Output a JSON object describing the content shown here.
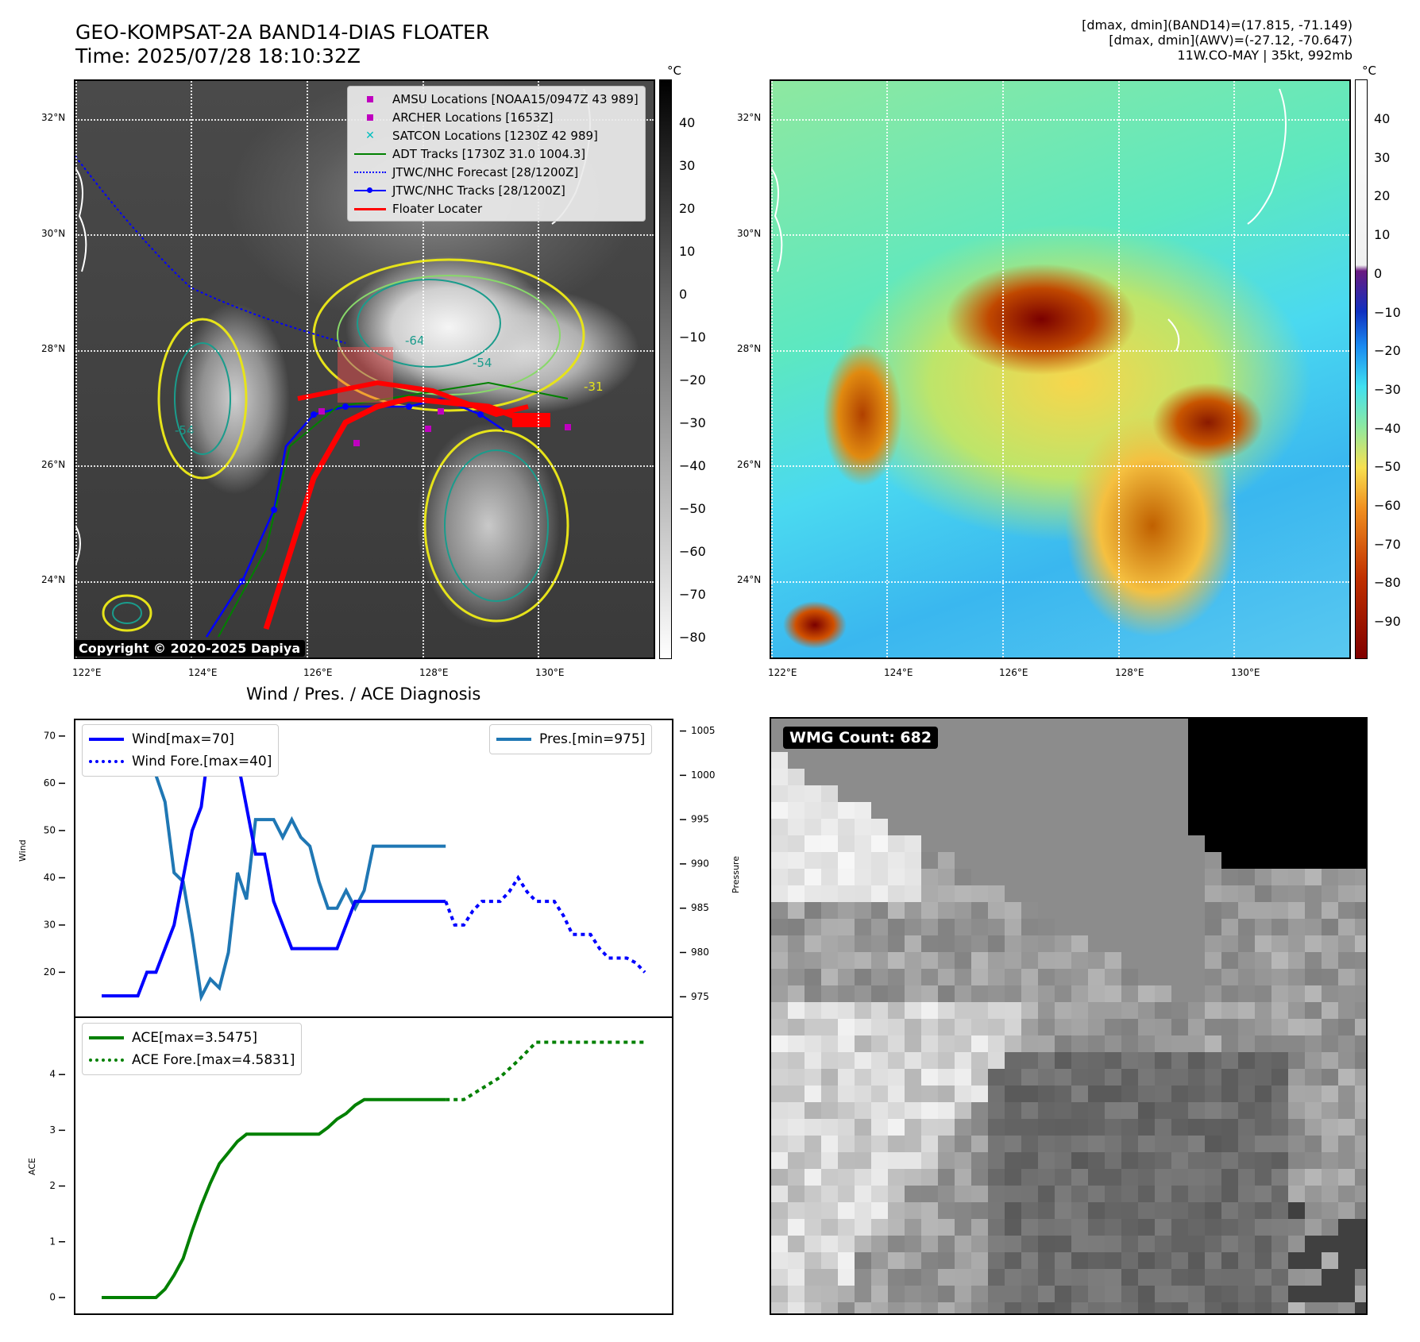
{
  "header": {
    "title_line1": "GEO-KOMPSAT-2A BAND14-DIAS FLOATER",
    "title_line2": "Time: 2025/07/28 18:10:32Z",
    "right_line1": "[dmax, dmin](BAND14)=(17.815, -71.149)",
    "right_line2": "[dmax, dmin](AWV)=(-27.12, -70.647)",
    "right_line3": "11W.CO-MAY | 35kt, 992mb"
  },
  "map": {
    "lat_labels": [
      "32°N",
      "30°N",
      "28°N",
      "26°N",
      "24°N"
    ],
    "lon_labels": [
      "122°E",
      "124°E",
      "126°E",
      "128°E",
      "130°E"
    ],
    "copyright": "Copyright © 2020-2025 Dapiya",
    "legend": [
      {
        "label": "AMSU Locations [NOAA15/0947Z 43 989]",
        "color": "#bf00bf",
        "kind": "square"
      },
      {
        "label": "ARCHER Locations [1653Z]",
        "color": "#bf00bf",
        "kind": "square"
      },
      {
        "label": "SATCON Locations [1230Z 42 989]",
        "color": "#00bfbf",
        "kind": "x"
      },
      {
        "label": "ADT Tracks [1730Z 31.0 1004.3]",
        "color": "#008000",
        "kind": "line"
      },
      {
        "label": "JTWC/NHC Forecast [28/1200Z]",
        "color": "#0000ff",
        "kind": "dotted"
      },
      {
        "label": "JTWC/NHC Tracks [28/1200Z]",
        "color": "#0000ff",
        "kind": "linedot"
      },
      {
        "label": "Floater Locater",
        "color": "#ff0000",
        "kind": "line"
      }
    ],
    "contour_labels": [
      "-64",
      "-54",
      "-31",
      "-54"
    ]
  },
  "colorbar_gray": {
    "unit": "°C",
    "ticks": [
      "40",
      "30",
      "20",
      "10",
      "0",
      "−10",
      "−20",
      "−30",
      "−40",
      "−50",
      "−60",
      "−70",
      "−80"
    ]
  },
  "colorbar_color": {
    "unit": "°C",
    "ticks": [
      "40",
      "30",
      "20",
      "10",
      "0",
      "−10",
      "−20",
      "−30",
      "−40",
      "−50",
      "−60",
      "−70",
      "−80",
      "−90"
    ]
  },
  "wmg": {
    "badge": "WMG Count: 682"
  },
  "chart_data": [
    {
      "type": "line",
      "title": "Wind / Pres. / ACE Diagnosis",
      "ylabel": "Wind",
      "ylabel_right": "Pressure",
      "ylim": [
        12,
        72
      ],
      "ylim_right": [
        973.5,
        1005.5
      ],
      "yticks": [
        "70",
        "60",
        "50",
        "40",
        "30",
        "20"
      ],
      "yticks_right": [
        "1005",
        "1000",
        "995",
        "990",
        "985",
        "980",
        "975"
      ],
      "series": [
        {
          "name": "Wind[max=70]",
          "color": "#0000ff",
          "style": "solid",
          "x": [
            0,
            2,
            4,
            5,
            6,
            7,
            8,
            9,
            10,
            11,
            12,
            13,
            14,
            15,
            16,
            17,
            18,
            19,
            20,
            21,
            22,
            23,
            24,
            25,
            26,
            27,
            28,
            29,
            30,
            31,
            32,
            33,
            34,
            35,
            36,
            37,
            38
          ],
          "values": [
            15,
            15,
            15,
            20,
            20,
            25,
            30,
            40,
            50,
            55,
            70,
            65,
            65,
            65,
            55,
            45,
            45,
            35,
            30,
            25,
            25,
            25,
            25,
            25,
            25,
            30,
            35,
            35,
            35,
            35,
            35,
            35,
            35,
            35,
            35,
            35,
            35
          ]
        },
        {
          "name": "Wind Fore.[max=40]",
          "color": "#0000ff",
          "style": "dotted",
          "x": [
            38,
            39,
            40,
            41,
            42,
            43,
            44,
            45,
            46,
            47,
            48,
            49,
            50,
            51,
            52,
            53,
            54,
            55,
            56,
            57,
            58,
            59,
            60
          ],
          "values": [
            35,
            30,
            30,
            33,
            35,
            35,
            35,
            37,
            40,
            37,
            35,
            35,
            35,
            32,
            28,
            28,
            28,
            25,
            23,
            23,
            23,
            22,
            20
          ]
        },
        {
          "name": "Pres.[min=975]",
          "color": "#1f77b4",
          "style": "solid",
          "x": [
            0,
            2,
            4,
            5,
            6,
            7,
            8,
            9,
            10,
            11,
            12,
            13,
            14,
            15,
            16,
            17,
            18,
            19,
            20,
            21,
            22,
            23,
            24,
            25,
            26,
            27,
            28,
            29,
            30,
            31,
            32,
            33,
            34,
            35,
            36,
            37,
            38
          ],
          "values": [
            1005,
            1005,
            1005,
            1002,
            1000,
            997,
            989,
            988,
            982,
            975,
            977,
            976,
            980,
            989,
            986,
            995,
            995,
            995,
            993,
            995,
            993,
            992,
            988,
            985,
            985,
            987,
            985,
            987,
            992,
            992,
            992,
            992,
            992,
            992,
            992,
            992,
            992
          ]
        },
        {
          "name": "ACE[max=3.5475]",
          "color": "#008000",
          "style": "solid",
          "x": [
            0,
            2,
            4,
            6,
            7,
            8,
            9,
            10,
            11,
            12,
            13,
            14,
            15,
            16,
            17,
            18,
            19,
            20,
            21,
            22,
            23,
            24,
            25,
            26,
            27,
            28,
            29,
            30,
            31,
            32,
            33,
            34,
            35,
            36,
            37,
            38
          ],
          "values": [
            0,
            0,
            0,
            0,
            0.15,
            0.4,
            0.7,
            1.2,
            1.65,
            2.05,
            2.4,
            2.6,
            2.8,
            2.93,
            2.93,
            2.93,
            2.93,
            2.93,
            2.93,
            2.93,
            2.93,
            2.93,
            3.05,
            3.2,
            3.3,
            3.45,
            3.55,
            3.55,
            3.55,
            3.55,
            3.55,
            3.55,
            3.55,
            3.55,
            3.55,
            3.55
          ]
        },
        {
          "name": "ACE Fore.[max=4.5831]",
          "color": "#008000",
          "style": "dotted",
          "x": [
            38,
            40,
            42,
            44,
            46,
            48,
            50,
            52,
            54,
            56,
            58,
            60
          ],
          "values": [
            3.55,
            3.55,
            3.75,
            3.95,
            4.25,
            4.58,
            4.58,
            4.58,
            4.58,
            4.58,
            4.58,
            4.58
          ]
        }
      ],
      "ace_ylabel": "ACE",
      "ace_ylim": [
        -0.2,
        4.9
      ],
      "ace_yticks": [
        "4",
        "3",
        "2",
        "1",
        "0"
      ]
    }
  ]
}
